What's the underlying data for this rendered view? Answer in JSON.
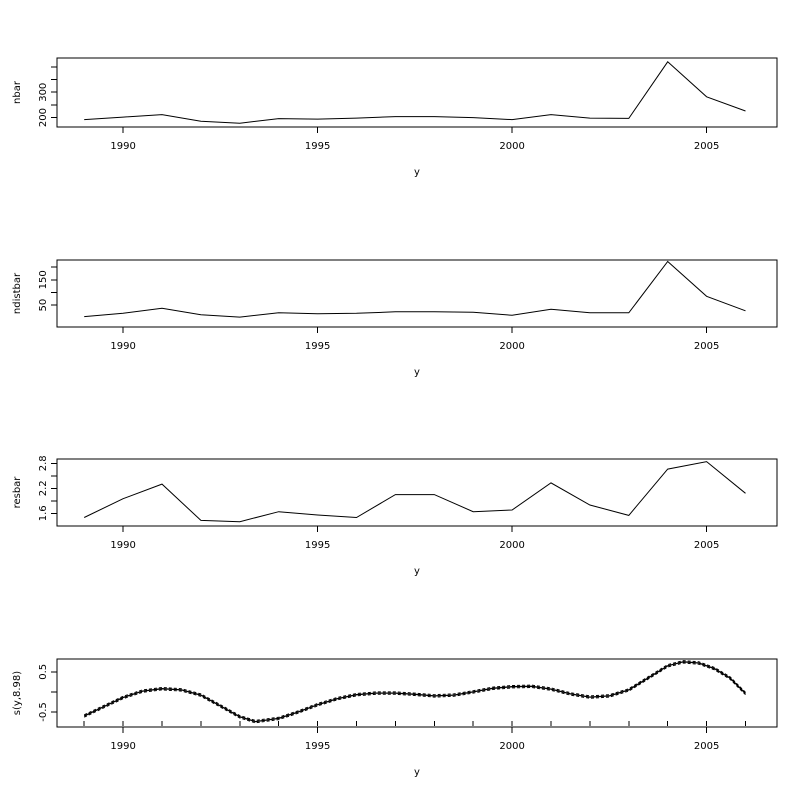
{
  "figure": {
    "background": "#ffffff",
    "stroke_color": "#000000",
    "xlabel": "y",
    "x_tick_labels": [
      "1990",
      "1995",
      "2000",
      "2005"
    ]
  },
  "chart_data": [
    {
      "type": "line",
      "name": "nbar",
      "ylabel": "nbar",
      "xlabel": "y",
      "x": [
        1989,
        1990,
        1991,
        1992,
        1993,
        1994,
        1995,
        1996,
        1997,
        1998,
        1999,
        2000,
        2001,
        2002,
        2003,
        2004,
        2005,
        2006
      ],
      "values": [
        192,
        202,
        212,
        186,
        178,
        196,
        194,
        198,
        204,
        204,
        200,
        192,
        212,
        198,
        197,
        420,
        282,
        226
      ],
      "ylim": [
        163,
        435
      ],
      "xlim": [
        1988.3,
        2006.81
      ],
      "yticks": [
        {
          "v": 200,
          "label": "200"
        },
        {
          "v": 250,
          "label": ""
        },
        {
          "v": 300,
          "label": "300"
        },
        {
          "v": 350,
          "label": ""
        },
        {
          "v": 400,
          "label": ""
        }
      ],
      "xticks": [
        {
          "v": 1990,
          "label": "1990"
        },
        {
          "v": 1995,
          "label": "1995"
        },
        {
          "v": 2000,
          "label": "2000"
        },
        {
          "v": 2005,
          "label": "2005"
        }
      ],
      "grid": false,
      "legend": null
    },
    {
      "type": "line",
      "name": "ndistbar",
      "ylabel": "ndistbar",
      "xlabel": "y",
      "x": [
        1989,
        1990,
        1991,
        1992,
        1993,
        1994,
        1995,
        1996,
        1997,
        1998,
        1999,
        2000,
        2001,
        2002,
        2003,
        2004,
        2005,
        2006
      ],
      "values": [
        5,
        18,
        38,
        12,
        3,
        20,
        16,
        18,
        24,
        24,
        22,
        10,
        34,
        20,
        20,
        222,
        85,
        28
      ],
      "ylim": [
        -36,
        228
      ],
      "xlim": [
        1988.3,
        2006.81
      ],
      "yticks": [
        {
          "v": 50,
          "label": "50"
        },
        {
          "v": 100,
          "label": ""
        },
        {
          "v": 150,
          "label": "150"
        },
        {
          "v": 200,
          "label": ""
        }
      ],
      "xticks": [
        {
          "v": 1990,
          "label": "1990"
        },
        {
          "v": 1995,
          "label": "1995"
        },
        {
          "v": 2000,
          "label": "2000"
        },
        {
          "v": 2005,
          "label": "2005"
        }
      ],
      "grid": false,
      "legend": null
    },
    {
      "type": "line",
      "name": "resbar",
      "ylabel": "resbar",
      "xlabel": "y",
      "x": [
        1989,
        1990,
        1991,
        1992,
        1993,
        1994,
        1995,
        1996,
        1997,
        1998,
        1999,
        2000,
        2001,
        2002,
        2003,
        2004,
        2005,
        2006
      ],
      "values": [
        1.5,
        1.95,
        2.3,
        1.43,
        1.4,
        1.64,
        1.56,
        1.5,
        2.05,
        2.05,
        1.64,
        1.68,
        2.33,
        1.8,
        1.55,
        2.66,
        2.84,
        2.08
      ],
      "ylim": [
        1.296,
        2.903
      ],
      "xlim": [
        1988.3,
        2006.81
      ],
      "yticks": [
        {
          "v": 1.6,
          "label": "1.6"
        },
        {
          "v": 1.9,
          "label": ""
        },
        {
          "v": 2.2,
          "label": "2.2"
        },
        {
          "v": 2.5,
          "label": ""
        },
        {
          "v": 2.8,
          "label": "2.8"
        }
      ],
      "xticks": [
        {
          "v": 1990,
          "label": "1990"
        },
        {
          "v": 1995,
          "label": "1995"
        },
        {
          "v": 2000,
          "label": "2000"
        },
        {
          "v": 2005,
          "label": "2005"
        }
      ],
      "grid": false,
      "legend": null
    },
    {
      "type": "line",
      "name": "smooth",
      "ylabel": "s(y,8.98)",
      "xlabel": "y",
      "ylim": [
        -0.875,
        0.82
      ],
      "xlim": [
        1988.3,
        2006.81
      ],
      "yticks": [
        {
          "v": -0.5,
          "label": "-0.5"
        },
        {
          "v": 0,
          "label": ""
        },
        {
          "v": 0.5,
          "label": "0.5"
        }
      ],
      "xticks": [
        {
          "v": 1990,
          "label": "1990"
        },
        {
          "v": 1995,
          "label": "1995"
        },
        {
          "v": 2000,
          "label": "2000"
        },
        {
          "v": 2005,
          "label": "2005"
        }
      ],
      "smooth_x": [
        1989,
        1989.5,
        1990,
        1990.5,
        1991,
        1991.5,
        1992,
        1992.5,
        1993,
        1993.4,
        1994,
        1994.5,
        1995,
        1995.5,
        1996,
        1996.5,
        1997,
        1997.5,
        1998,
        1998.5,
        1999,
        1999.5,
        2000,
        2000.5,
        2001,
        2001.5,
        2002,
        2002.5,
        2003,
        2003.5,
        2004,
        2004.4,
        2004.8,
        2005.2,
        2005.6,
        2006
      ],
      "smooth_y": [
        -0.6,
        -0.37,
        -0.14,
        0.02,
        0.08,
        0.05,
        -0.08,
        -0.35,
        -0.62,
        -0.74,
        -0.66,
        -0.5,
        -0.32,
        -0.17,
        -0.07,
        -0.03,
        -0.03,
        -0.06,
        -0.1,
        -0.08,
        0.0,
        0.09,
        0.13,
        0.14,
        0.07,
        -0.05,
        -0.13,
        -0.1,
        0.05,
        0.35,
        0.65,
        0.75,
        0.72,
        0.58,
        0.35,
        -0.04
      ],
      "ci_offset": 0.03,
      "ci_style": "dashed",
      "rug_x": [
        1989,
        1990,
        1991,
        1992,
        1993,
        1994,
        1995,
        1996,
        1997,
        1998,
        1999,
        2000,
        2001,
        2002,
        2003,
        2004,
        2005,
        2006
      ],
      "grid": false,
      "legend": null
    }
  ]
}
